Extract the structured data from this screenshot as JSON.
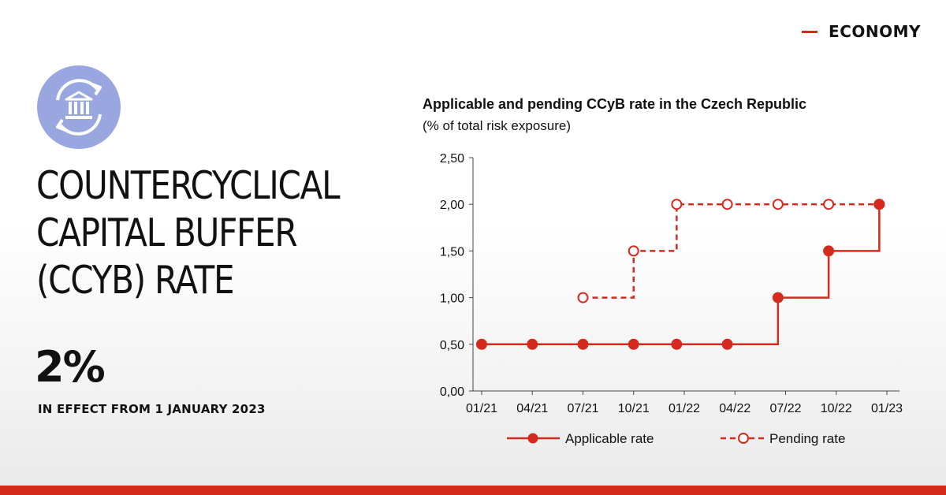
{
  "header": {
    "section_label": "ECONOMY"
  },
  "headline": {
    "title_lines": [
      "COUNTERCYCLICAL",
      "CAPITAL BUFFER",
      "(CCYB) RATE"
    ],
    "rate": "2%",
    "effective_text": "IN EFFECT FROM 1 JANUARY 2023"
  },
  "icons": {
    "badge": "bank-refresh-icon"
  },
  "colors": {
    "accent": "#d52b1e",
    "badge": "#99a7e0"
  },
  "chart_data": {
    "type": "line",
    "title": "Applicable and pending CCyB rate in the Czech Republic",
    "subtitle": "(% of total risk exposure)",
    "xlabel": "",
    "ylabel": "",
    "categories": [
      "01/21",
      "04/21",
      "07/21",
      "10/21",
      "01/22",
      "04/22",
      "07/22",
      "10/22",
      "01/23"
    ],
    "y_ticks": [
      "0,00",
      "0,50",
      "1,00",
      "1,50",
      "2,00",
      "2,50"
    ],
    "ylim": [
      0,
      2.5
    ],
    "step": true,
    "grid": false,
    "legend": "bottom",
    "series": [
      {
        "name": "Applicable rate",
        "style": "solid-filled-markers",
        "x": [
          0,
          1,
          2,
          3,
          3.85,
          4.85,
          5.85,
          6.85,
          7.85
        ],
        "values": [
          0.5,
          0.5,
          0.5,
          0.5,
          0.5,
          0.5,
          1.0,
          1.5,
          2.0
        ]
      },
      {
        "name": "Pending rate",
        "style": "dashed-hollow-markers",
        "x": [
          2,
          3,
          3.85,
          4.85,
          5.85,
          6.85,
          7.85
        ],
        "values": [
          1.0,
          1.5,
          2.0,
          2.0,
          2.0,
          2.0,
          2.0
        ]
      }
    ]
  }
}
